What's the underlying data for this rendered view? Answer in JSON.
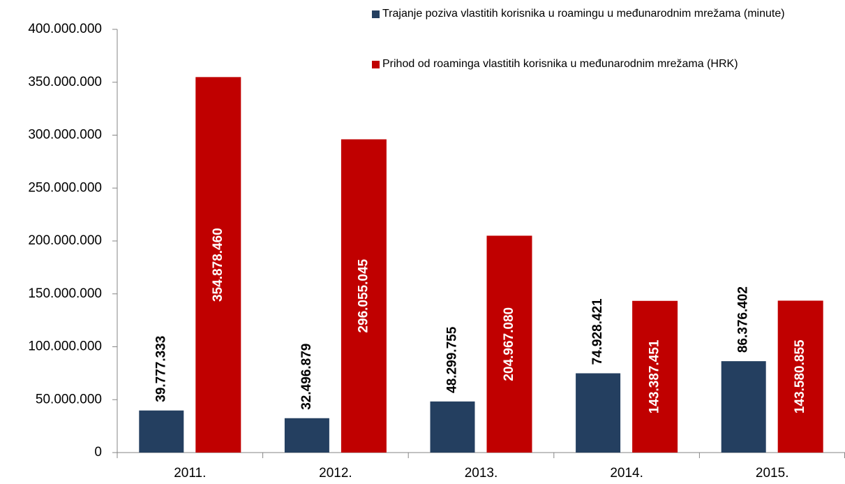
{
  "chart_data": {
    "type": "bar",
    "categories": [
      "2011.",
      "2012.",
      "2013.",
      "2014.",
      "2015."
    ],
    "series": [
      {
        "name": "Trajanje poziva vlastitih korisnika u roamingu u međunarodnim mrežama (minute)",
        "color": "#243f60",
        "values": [
          39777333,
          32496879,
          48299755,
          74928421,
          86376402
        ],
        "value_labels": [
          "39.777.333",
          "32.496.879",
          "48.299.755",
          "74.928.421",
          "86.376.402"
        ]
      },
      {
        "name": "Prihod od roaminga vlastitih korisnika u međunarodnim mrežama (HRK)",
        "color": "#c00000",
        "values": [
          354878460,
          296055045,
          204967080,
          143387451,
          143580855
        ],
        "value_labels": [
          "354.878.460",
          "296.055.045",
          "204.967.080",
          "143.387.451",
          "143.580.855"
        ]
      }
    ],
    "ylim": [
      0,
      400000000
    ],
    "yticks": [
      0,
      {
        "value": 50000000,
        "label": "50.000.000"
      },
      {
        "value": 100000000,
        "label": "100.000.000"
      },
      {
        "value": 150000000,
        "label": "150.000.000"
      },
      {
        "value": 200000000,
        "label": "200.000.000"
      },
      {
        "value": 250000000,
        "label": "250.000.000"
      },
      {
        "value": 300000000,
        "label": "300.000.000"
      },
      {
        "value": 350000000,
        "label": "350.000.000"
      },
      {
        "value": 400000000,
        "label": "400.000.000"
      }
    ],
    "grid": false
  }
}
